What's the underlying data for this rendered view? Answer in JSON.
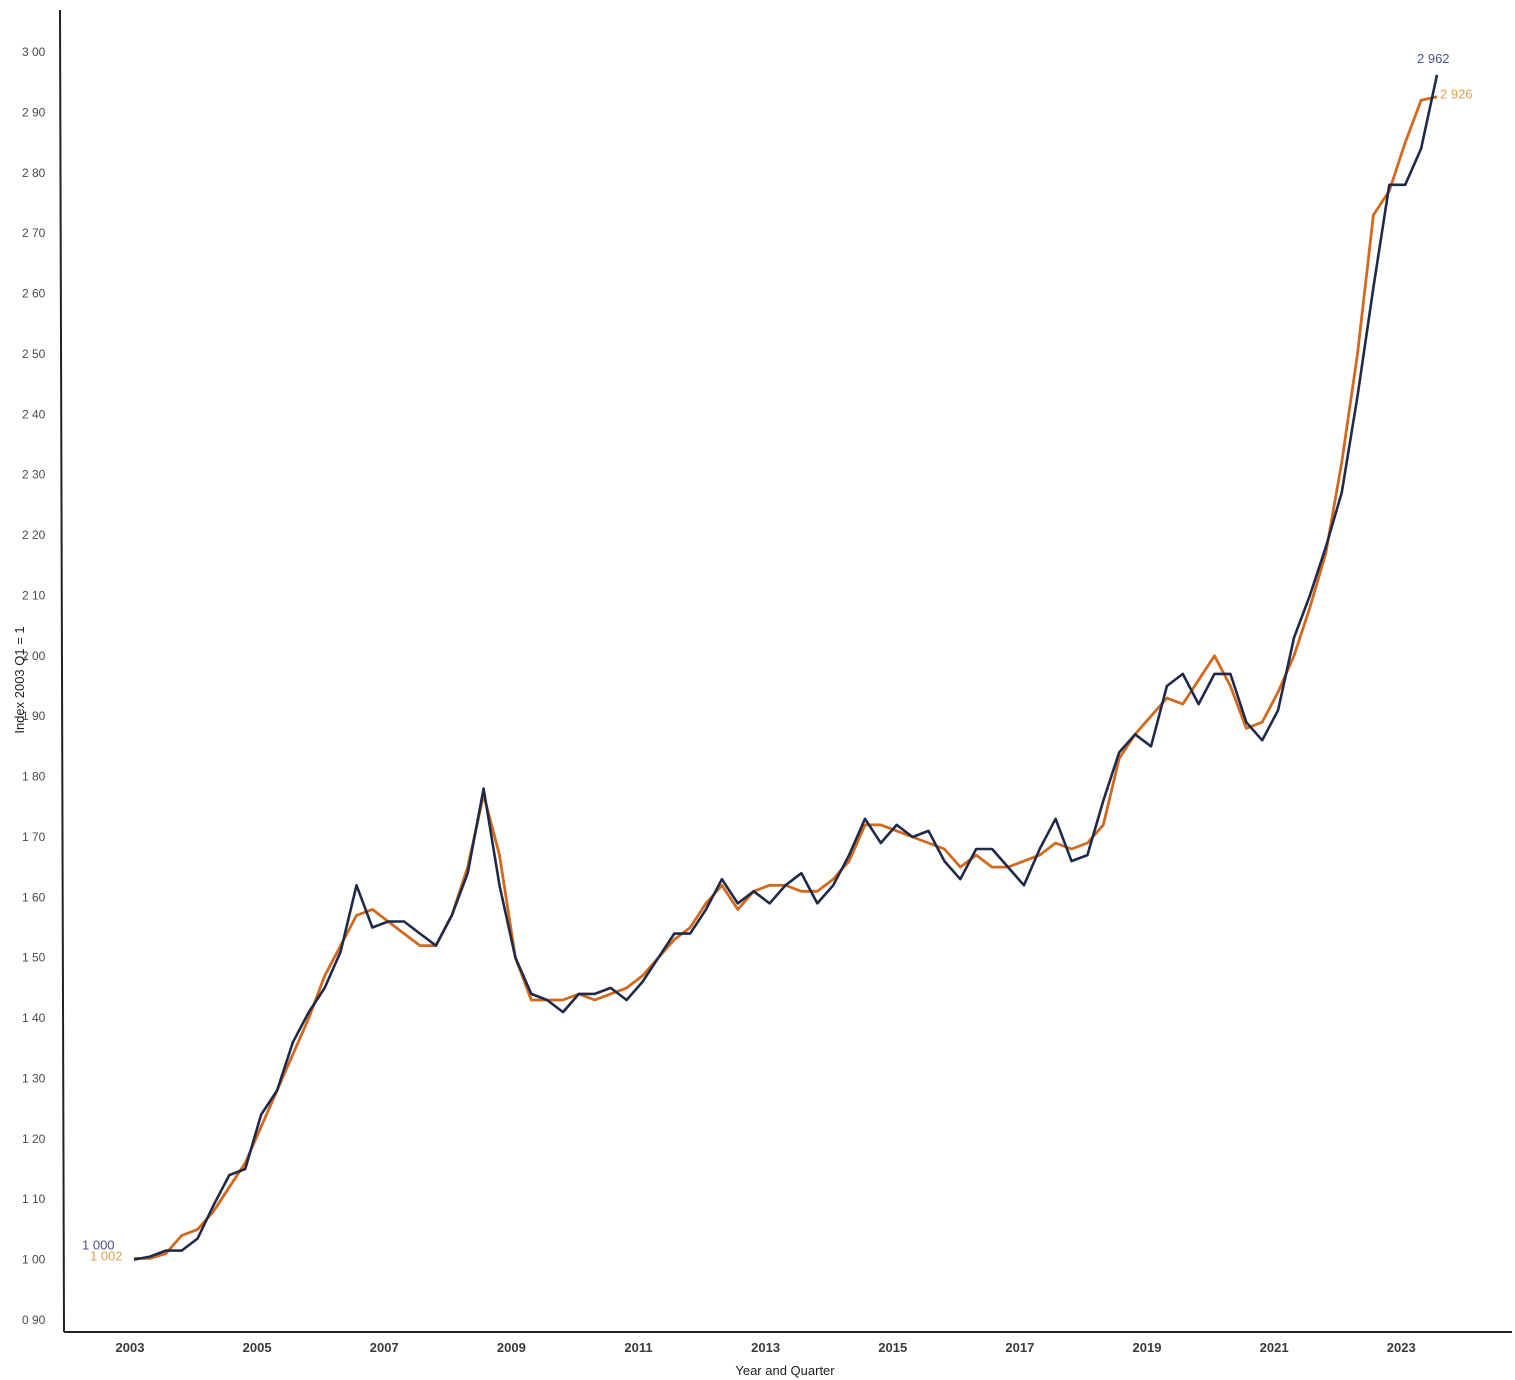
{
  "chart_data": {
    "type": "line",
    "xlabel": "Year and Quarter",
    "ylabel": "Index  2003 Q1 = 1",
    "ylim": [
      0.9,
      3.0
    ],
    "yticks": [
      "3 00",
      "2 90",
      "2 80",
      "2 70",
      "2 60",
      "2 50",
      "2 40",
      "2 30",
      "2 20",
      "2 10",
      "2 00",
      "1 90",
      "1 80",
      "1 70",
      "1 60",
      "1 50",
      "1 40",
      "1 30",
      "1 20",
      "1 10",
      "1 00",
      "0 90"
    ],
    "ytick_values": [
      3.0,
      2.9,
      2.8,
      2.7,
      2.6,
      2.5,
      2.4,
      2.3,
      2.2,
      2.1,
      2.0,
      1.9,
      1.8,
      1.7,
      1.6,
      1.5,
      1.4,
      1.3,
      1.2,
      1.1,
      1.0,
      0.9
    ],
    "xticks": [
      "2003",
      "2005",
      "2007",
      "2009",
      "2011",
      "2013",
      "2015",
      "2017",
      "2019",
      "2021",
      "2023"
    ],
    "x_start_year": 2003,
    "grid": false,
    "legend": "none",
    "series": [
      {
        "color": "#1f2a4a",
        "start_label": "1 000",
        "end_label": "2 962",
        "label_color": "#4b4f8a",
        "values": [
          1.0,
          1.005,
          1.015,
          1.015,
          1.035,
          1.09,
          1.14,
          1.15,
          1.24,
          1.28,
          1.36,
          1.41,
          1.45,
          1.51,
          1.62,
          1.55,
          1.56,
          1.56,
          1.54,
          1.52,
          1.57,
          1.64,
          1.78,
          1.62,
          1.5,
          1.44,
          1.43,
          1.41,
          1.44,
          1.44,
          1.45,
          1.43,
          1.46,
          1.5,
          1.54,
          1.54,
          1.58,
          1.63,
          1.59,
          1.61,
          1.59,
          1.62,
          1.64,
          1.59,
          1.62,
          1.67,
          1.73,
          1.69,
          1.72,
          1.7,
          1.71,
          1.66,
          1.63,
          1.68,
          1.68,
          1.65,
          1.62,
          1.68,
          1.73,
          1.66,
          1.67,
          1.76,
          1.84,
          1.87,
          1.85,
          1.95,
          1.97,
          1.92,
          1.97,
          1.97,
          1.89,
          1.86,
          1.91,
          2.03,
          2.1,
          2.18,
          2.27,
          2.43,
          2.61,
          2.78,
          2.78,
          2.84,
          2.962
        ]
      },
      {
        "color": "#d2691e",
        "start_label": "1 002",
        "end_label": "2 926",
        "label_color": "#e0a050",
        "values": [
          1.002,
          1.002,
          1.01,
          1.04,
          1.05,
          1.08,
          1.12,
          1.16,
          1.22,
          1.28,
          1.34,
          1.4,
          1.47,
          1.52,
          1.57,
          1.58,
          1.56,
          1.54,
          1.52,
          1.52,
          1.57,
          1.65,
          1.77,
          1.67,
          1.5,
          1.43,
          1.43,
          1.43,
          1.44,
          1.43,
          1.44,
          1.45,
          1.47,
          1.5,
          1.53,
          1.55,
          1.59,
          1.62,
          1.58,
          1.61,
          1.62,
          1.62,
          1.61,
          1.61,
          1.63,
          1.66,
          1.72,
          1.72,
          1.71,
          1.7,
          1.69,
          1.68,
          1.65,
          1.67,
          1.65,
          1.65,
          1.66,
          1.67,
          1.69,
          1.68,
          1.69,
          1.72,
          1.83,
          1.87,
          1.9,
          1.93,
          1.92,
          1.96,
          2.0,
          1.95,
          1.88,
          1.89,
          1.94,
          2.0,
          2.08,
          2.17,
          2.32,
          2.5,
          2.73,
          2.77,
          2.85,
          2.92,
          2.926
        ]
      }
    ]
  }
}
